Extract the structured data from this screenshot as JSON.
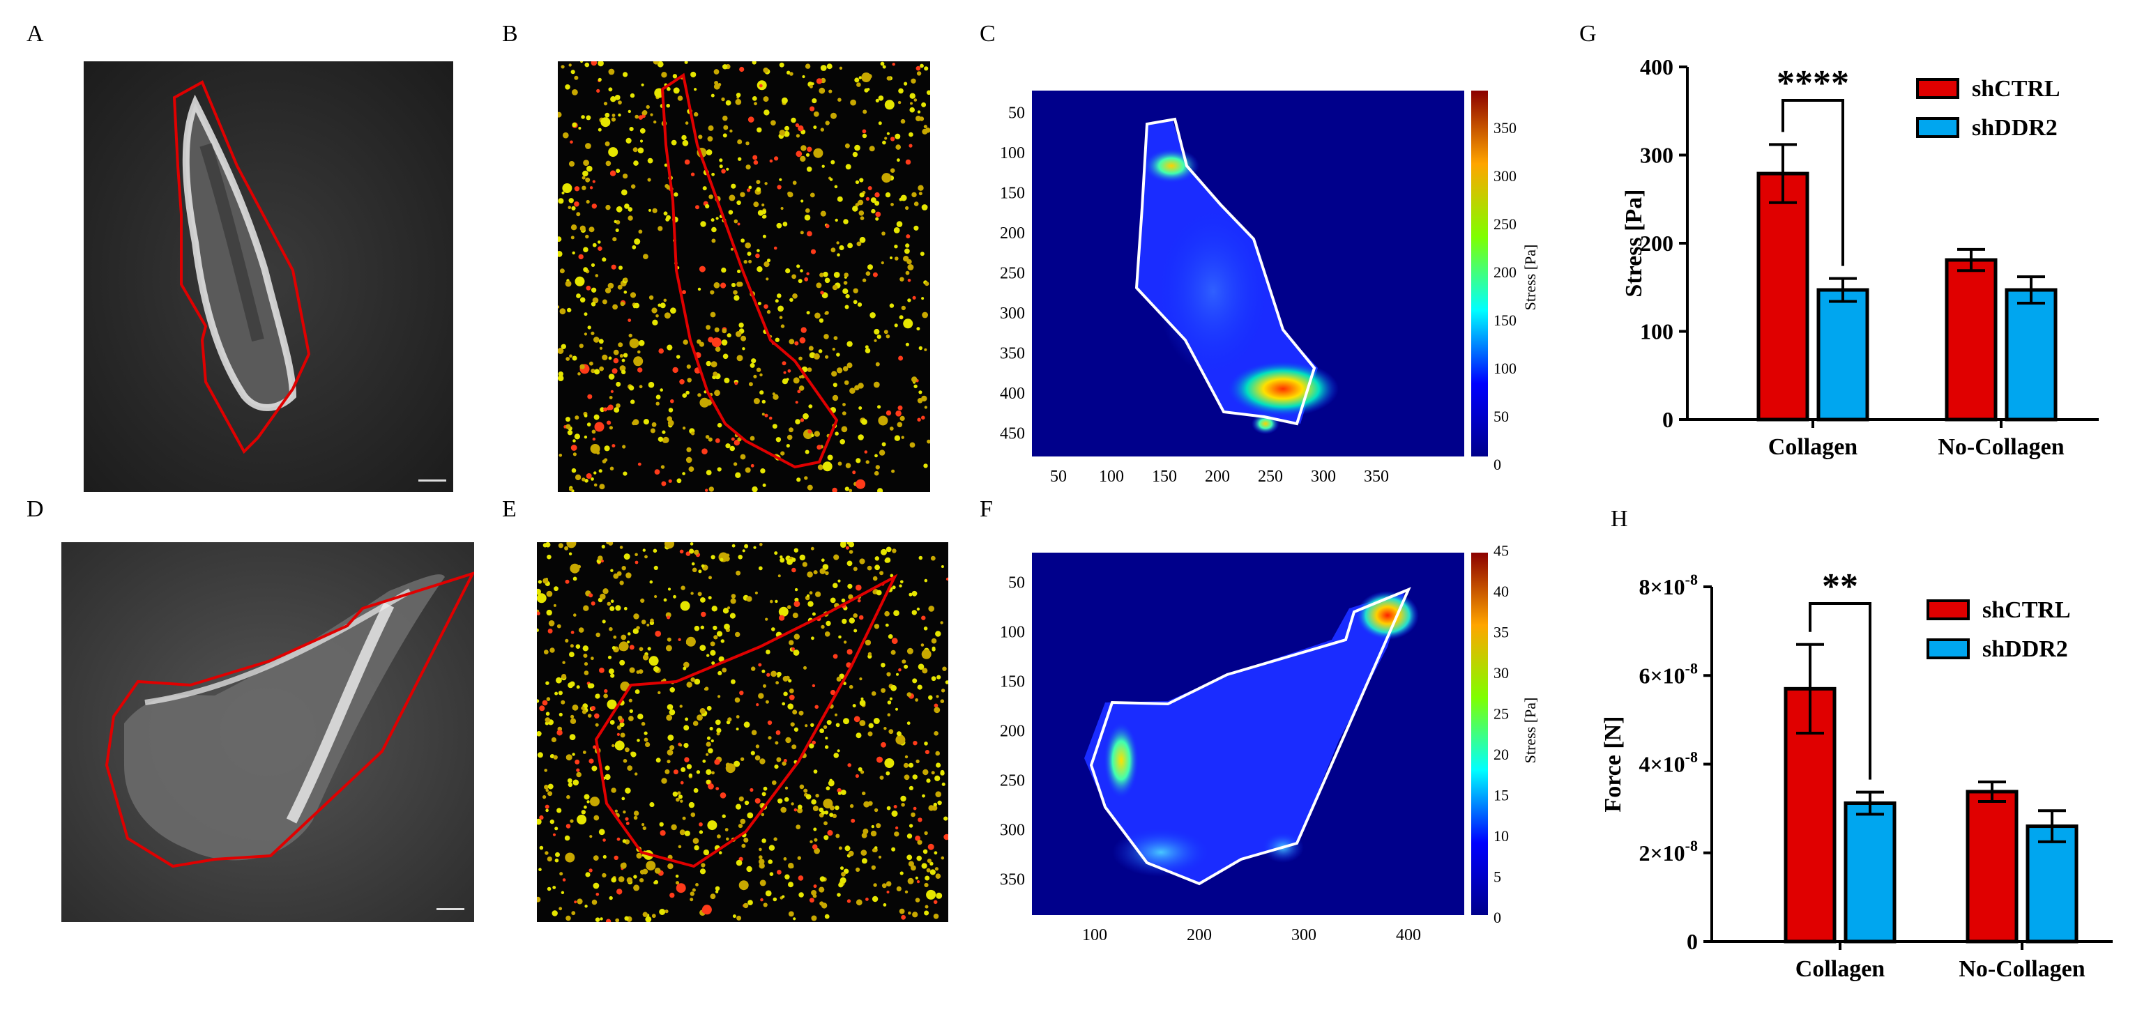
{
  "panel_letters": [
    "A",
    "B",
    "C",
    "D",
    "E",
    "F",
    "G",
    "H"
  ],
  "heatmap_C": {
    "x_ticks": [
      "50",
      "100",
      "150",
      "200",
      "250",
      "300",
      "350"
    ],
    "y_ticks": [
      "50",
      "100",
      "150",
      "200",
      "250",
      "300",
      "350",
      "400",
      "450"
    ],
    "colorbar_ticks": [
      "0",
      "50",
      "100",
      "150",
      "200",
      "250",
      "300",
      "350"
    ],
    "colorbar_label": "Stress [Pa]"
  },
  "heatmap_F": {
    "x_ticks": [
      "100",
      "200",
      "300",
      "400"
    ],
    "y_ticks": [
      "50",
      "100",
      "150",
      "200",
      "250",
      "300",
      "350"
    ],
    "colorbar_ticks": [
      "0",
      "5",
      "10",
      "15",
      "20",
      "25",
      "30",
      "35",
      "40",
      "45"
    ],
    "colorbar_label": "Stress [Pa]"
  },
  "colors": {
    "shCTRL": "#e00000",
    "shDDR2": "#00a6ef",
    "outline": "#e00000"
  },
  "chart_data": [
    {
      "type": "bar",
      "panel": "G",
      "categories": [
        "Collagen",
        "No-Collagen"
      ],
      "series": [
        {
          "name": "shCTRL",
          "values": [
            279,
            181
          ],
          "errors": [
            33,
            12
          ]
        },
        {
          "name": "shDDR2",
          "values": [
            147,
            147
          ],
          "errors": [
            13,
            15
          ]
        }
      ],
      "ylabel": "Stress [Pa]",
      "ylim": [
        0,
        400
      ],
      "y_ticks": [
        "0",
        "100",
        "200",
        "300",
        "400"
      ],
      "significance": "****",
      "legend": "top-right"
    },
    {
      "type": "bar",
      "panel": "H",
      "categories": [
        "Collagen",
        "No-Collagen"
      ],
      "series": [
        {
          "name": "shCTRL",
          "values": [
            5.7e-08,
            3.38e-08
          ],
          "errors": [
            1e-08,
            2.2e-09
          ]
        },
        {
          "name": "shDDR2",
          "values": [
            3.12e-08,
            2.6e-08
          ],
          "errors": [
            2.5e-09,
            3.5e-09
          ]
        }
      ],
      "ylabel": "Force [N]",
      "ylim": [
        0,
        8e-08
      ],
      "y_ticks": [
        {
          "base": "0",
          "exp": ""
        },
        {
          "base": "2×10",
          "exp": "-8"
        },
        {
          "base": "4×10",
          "exp": "-8"
        },
        {
          "base": "6×10",
          "exp": "-8"
        },
        {
          "base": "8×10",
          "exp": "-8"
        }
      ],
      "significance": "**",
      "legend": "top-right"
    }
  ]
}
